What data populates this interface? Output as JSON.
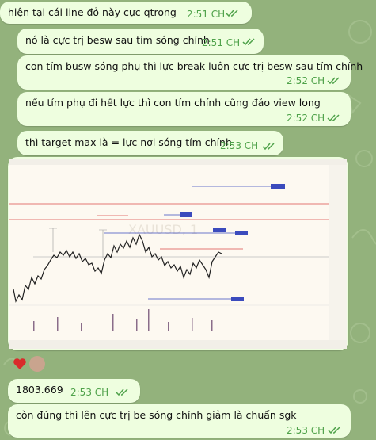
{
  "messages": [
    {
      "text": "hiện tại cái line đỏ này cực qtrong",
      "time": "2:51 CH"
    },
    {
      "text": "nó là cực trị besw sau tím sóng chính",
      "time": "2:51 CH"
    },
    {
      "text": "con tím busw sóng phụ thì lực break luôn cực trị besw sau tím chính",
      "time": "2:52 CH"
    },
    {
      "text": "nếu tím phụ đi hết lực thì con tím chính cũng đảo view long",
      "time": "2:52 CH"
    },
    {
      "text": "thì target max là = lực nơi sóng tím chính",
      "time": "2:53 CH"
    },
    {
      "text": "1803.669",
      "time": "2:53 CH"
    },
    {
      "text": "còn đúng thì lên cực trị be sóng chính giảm là chuẩn sgk",
      "time": "2:53 CH"
    }
  ]
}
